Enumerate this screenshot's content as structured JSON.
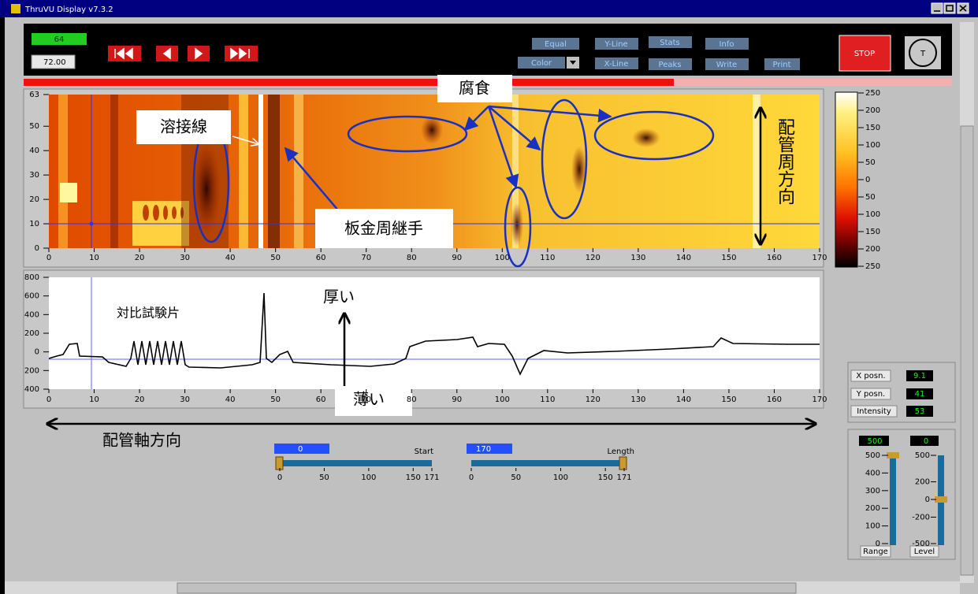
{
  "window": {
    "title": "ThruVU Display v7.3.2"
  },
  "toolbar": {
    "frame": "64",
    "position": "72.00",
    "buttons": {
      "equal": "Equal",
      "y_line": "Y-Line",
      "stats": "Stats",
      "info": "Info",
      "color": "Color",
      "x_line": "X-Line",
      "peaks": "Peaks",
      "write": "Write",
      "print": "Print"
    },
    "stop": "STOP",
    "logo": "T"
  },
  "cscan": {
    "xlim": [
      0,
      170
    ],
    "ylim": [
      0,
      63
    ],
    "xticks": [
      0,
      10,
      20,
      30,
      40,
      50,
      60,
      70,
      80,
      90,
      100,
      110,
      120,
      130,
      140,
      150,
      160,
      170
    ],
    "yticks": [
      0,
      10,
      20,
      30,
      40,
      50,
      63
    ]
  },
  "colorbar": {
    "lim": [
      -250,
      250
    ],
    "ticks": [
      250,
      200,
      150,
      100,
      50,
      0,
      {
        "value": -50,
        "label": "50"
      },
      {
        "value": -100,
        "label": "100"
      },
      {
        "value": -150,
        "label": "150"
      },
      {
        "value": -200,
        "label": "200"
      },
      {
        "value": -250,
        "label": "250"
      }
    ]
  },
  "profile": {
    "xlim": [
      0,
      170
    ],
    "ylim": [
      -400,
      800
    ],
    "xticks": [
      0,
      10,
      20,
      30,
      40,
      50,
      60,
      70,
      80,
      90,
      100,
      110,
      120,
      130,
      140,
      150,
      160,
      170
    ],
    "yticks": [
      800,
      600,
      400,
      200,
      0,
      {
        "value": -200,
        "label": "200"
      },
      {
        "value": -400,
        "label": "400"
      }
    ]
  },
  "annotations": {
    "corrosion": "腐食",
    "weld_line": "溶接線",
    "sheet_joint": "板金周継手",
    "circumferential": "配管周方向",
    "thick": "厚い",
    "thin": "薄い",
    "reference": "対比試験片",
    "axial": "配管軸方向"
  },
  "readout": {
    "x_label": "X posn.",
    "x_value": "9.1",
    "y_label": "Y posn.",
    "y_value": "41",
    "i_label": "Intensity",
    "i_value": "53"
  },
  "start": {
    "label": "Start",
    "value": "0",
    "lim": [
      0,
      171
    ],
    "ticks": [
      0,
      50,
      100,
      150,
      171
    ]
  },
  "length": {
    "label": "Length",
    "value": "170",
    "lim": [
      0,
      171
    ],
    "ticks": [
      0,
      50,
      100,
      150,
      171
    ]
  },
  "range": {
    "label": "Range",
    "value": "500",
    "lim": [
      0,
      500
    ],
    "ticks": [
      500,
      400,
      300,
      200,
      100,
      0
    ]
  },
  "level": {
    "label": "Level",
    "value": "0",
    "lim": [
      -500,
      500
    ],
    "ticks": [
      500,
      200,
      0,
      -200,
      -500
    ]
  }
}
